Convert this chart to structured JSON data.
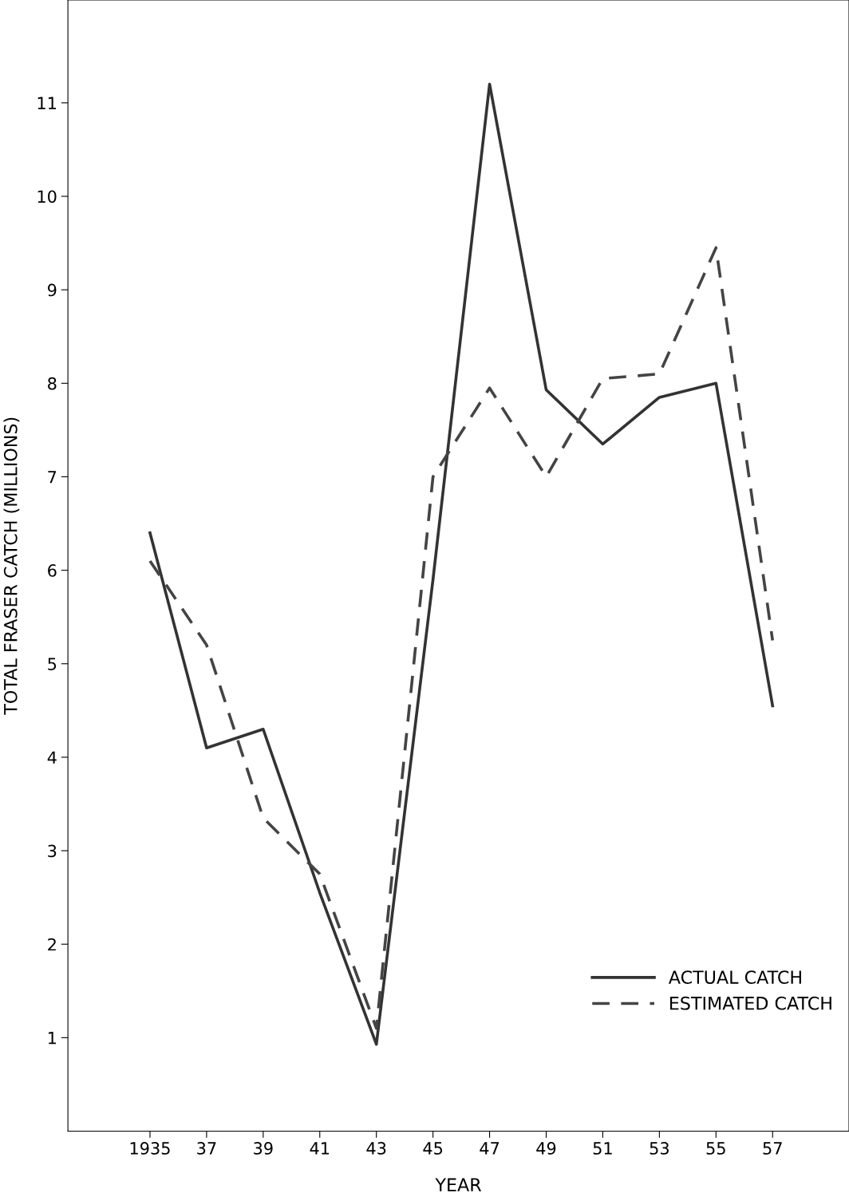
{
  "chart_data": {
    "type": "line",
    "xlabel": "YEAR",
    "ylabel": "TOTAL FRASER CATCH (MILLIONS)",
    "x": [
      1935,
      1937,
      1939,
      1941,
      1943,
      1945,
      1947,
      1949,
      1951,
      1953,
      1955,
      1957
    ],
    "series": [
      {
        "name": "ACTUAL CATCH",
        "color": "#333333",
        "line_style": "solid",
        "values": [
          6.4,
          4.1,
          4.3,
          2.55,
          0.93,
          5.9,
          11.2,
          7.93,
          7.35,
          7.85,
          8.0,
          4.55
        ]
      },
      {
        "name": "ESTIMATED CATCH",
        "color": "#444444",
        "line_style": "dashed",
        "values": [
          6.1,
          5.2,
          3.35,
          2.75,
          1.1,
          7.0,
          7.95,
          7.0,
          8.05,
          8.1,
          9.45,
          5.25
        ]
      }
    ],
    "xlim": [
      1932.1,
      1959.7
    ],
    "ylim": [
      0,
      12.1
    ],
    "xticks": [
      {
        "value": 1935,
        "label": "1935"
      },
      {
        "value": 1937,
        "label": "37"
      },
      {
        "value": 1939,
        "label": "39"
      },
      {
        "value": 1941,
        "label": "41"
      },
      {
        "value": 1943,
        "label": "43"
      },
      {
        "value": 1945,
        "label": "45"
      },
      {
        "value": 1947,
        "label": "47"
      },
      {
        "value": 1949,
        "label": "49"
      },
      {
        "value": 1951,
        "label": "51"
      },
      {
        "value": 1953,
        "label": "53"
      },
      {
        "value": 1955,
        "label": "55"
      },
      {
        "value": 1957,
        "label": "57"
      }
    ],
    "yticks": [
      1,
      2,
      3,
      4,
      5,
      6,
      7,
      8,
      9,
      10,
      11
    ],
    "grid": false,
    "legend": "bottom right",
    "marker": "none"
  }
}
